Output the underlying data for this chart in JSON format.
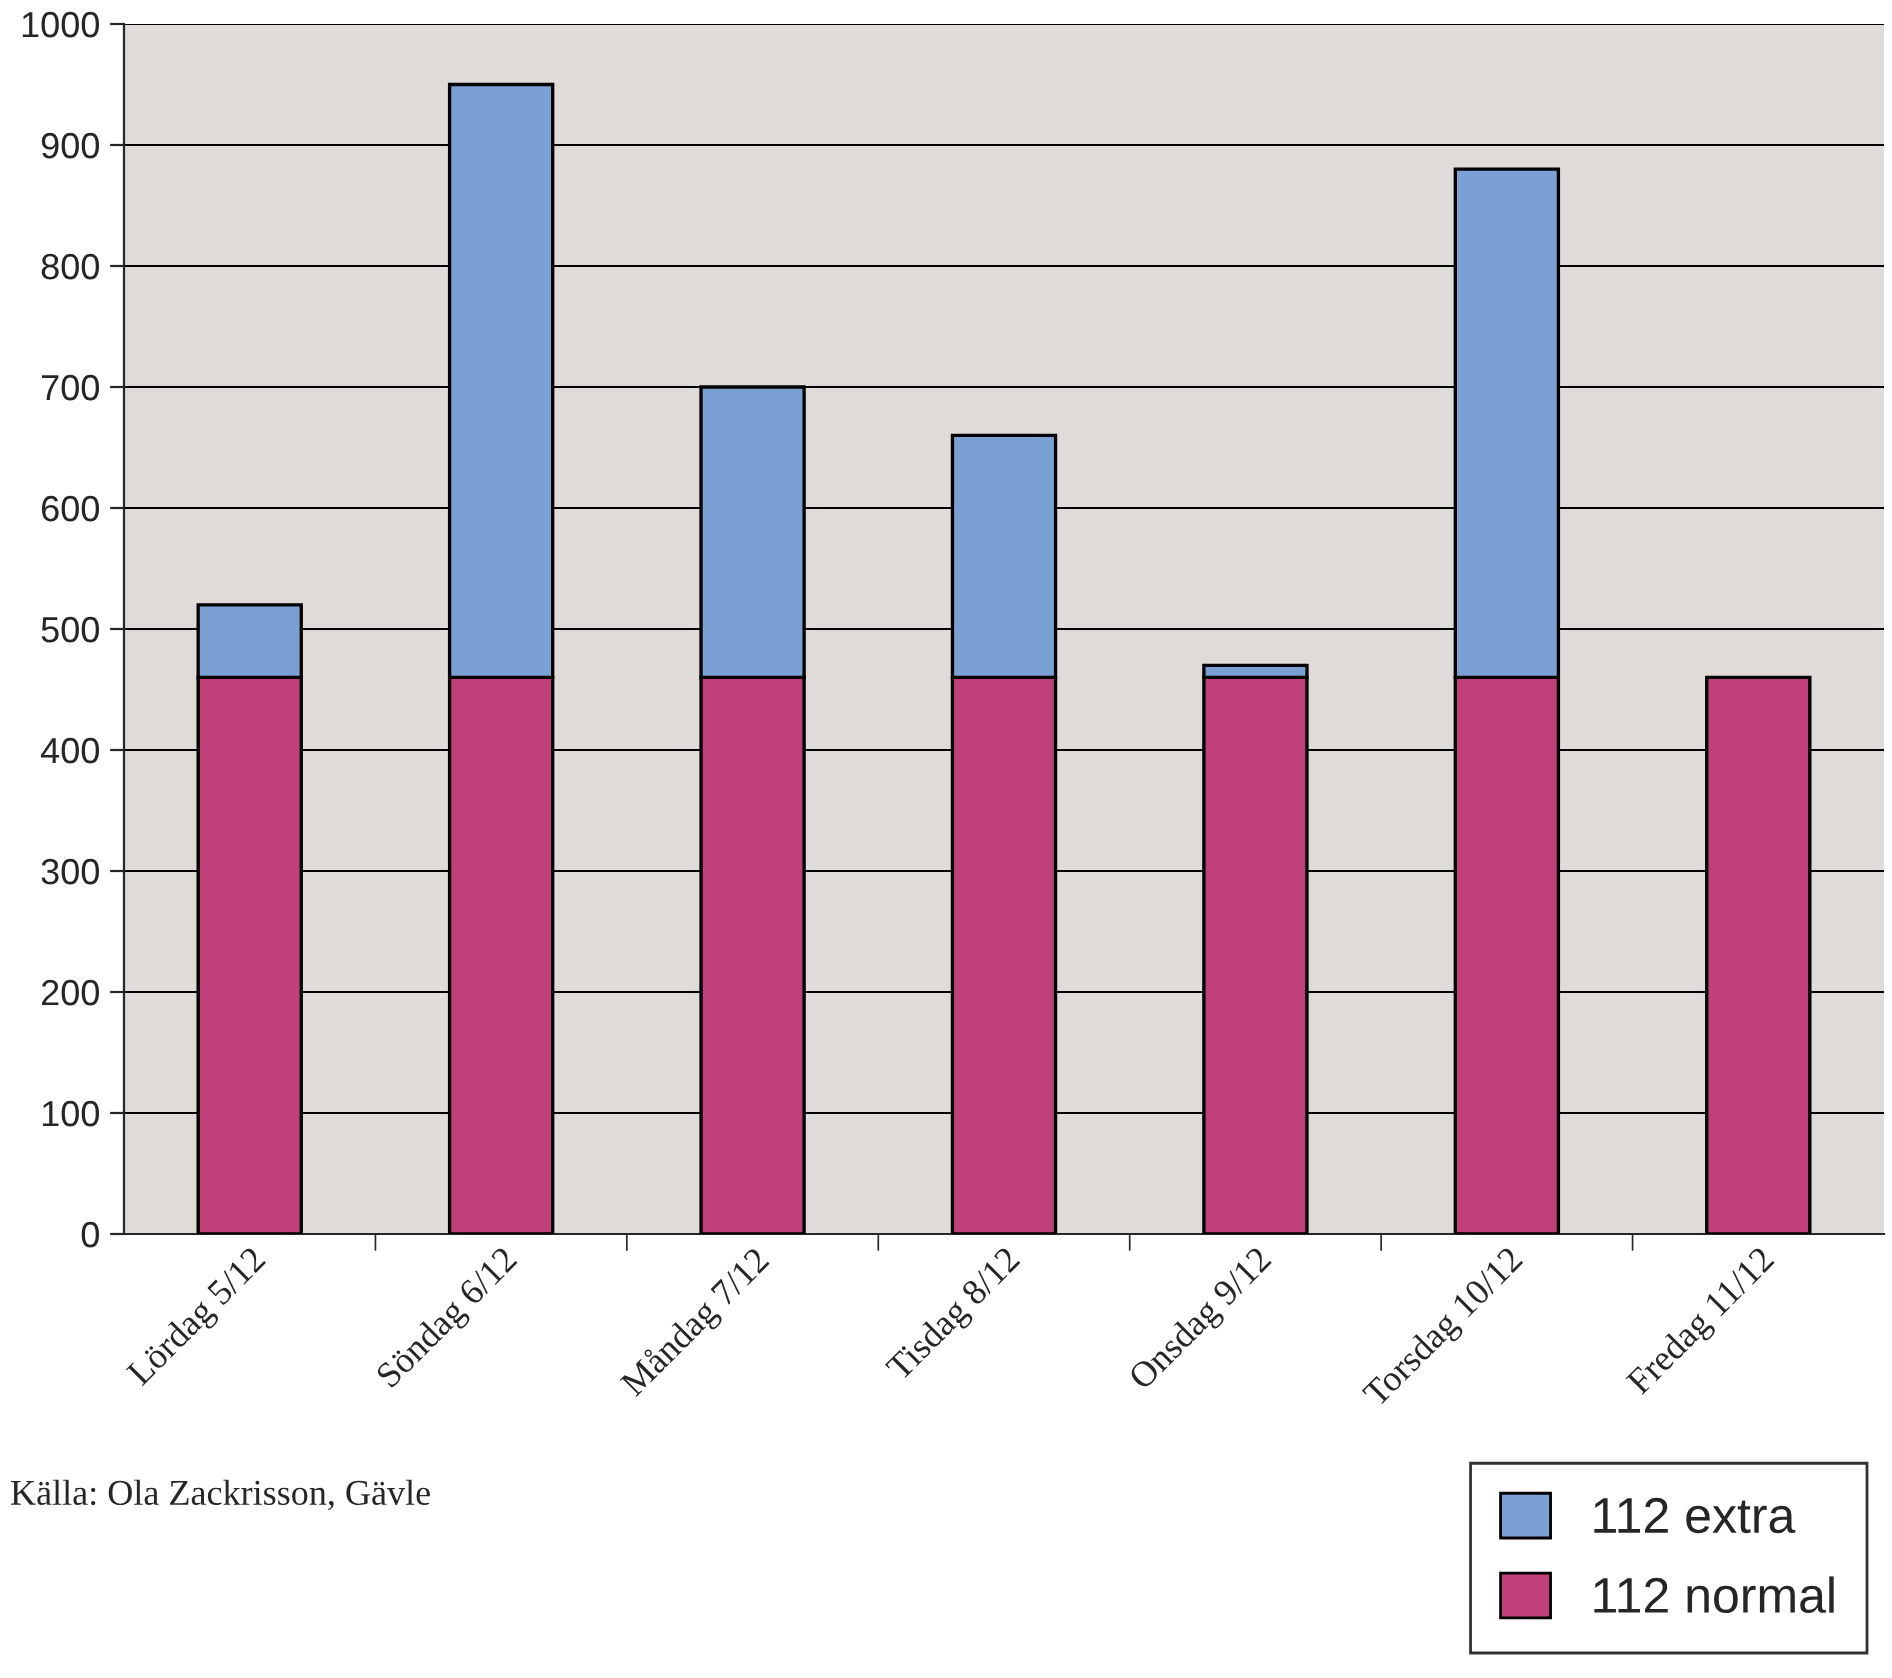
{
  "chart_data": {
    "type": "bar",
    "stacked": true,
    "categories": [
      "Lördag 5/12",
      "Söndag 6/12",
      "Måndag 7/12",
      "Tisdag 8/12",
      "Onsdag 9/12",
      "Torsdag 10/12",
      "Fredag 11/12"
    ],
    "series": [
      {
        "name": "112 normal",
        "color": "#c0407a",
        "values": [
          460,
          460,
          460,
          460,
          460,
          460,
          460
        ]
      },
      {
        "name": "112 extra",
        "color": "#7ba0d4",
        "values": [
          60,
          490,
          240,
          200,
          10,
          420,
          null
        ]
      }
    ],
    "ylim": [
      0,
      1000
    ],
    "yticks": [
      0,
      100,
      200,
      300,
      400,
      500,
      600,
      700,
      800,
      900,
      1000
    ],
    "grid": "y",
    "legend": "bottom right",
    "annotations": [
      "Källa: Ola Zackrisson, Gävle"
    ]
  }
}
